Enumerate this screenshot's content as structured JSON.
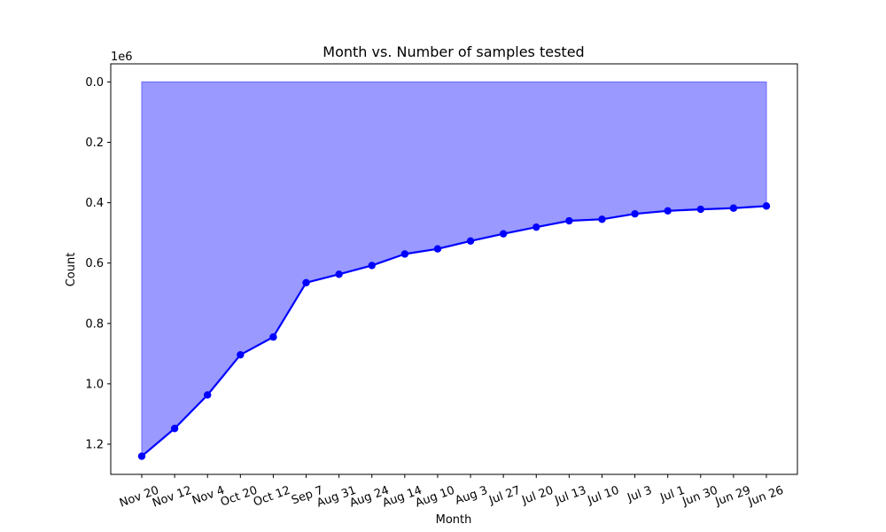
{
  "chart_data": {
    "type": "area",
    "title": "Month vs. Number of samples tested",
    "xlabel": "Month",
    "ylabel": "Count",
    "y_multiplier_label": "1e6",
    "y_axis_inverted": true,
    "ylim": [
      1.3,
      -0.06
    ],
    "y_ticks": [
      0.0,
      0.2,
      0.4,
      0.6,
      0.8,
      1.0,
      1.2
    ],
    "y_tick_labels": [
      "0.0",
      "0.2",
      "0.4",
      "0.6",
      "0.8",
      "1.0",
      "1.2"
    ],
    "grid": false,
    "categories": [
      "Nov 20",
      "Nov 12",
      "Nov 4",
      "Oct 20",
      "Oct 12",
      "Sep 7",
      "Aug 31",
      "Aug 24",
      "Aug 14",
      "Aug 10",
      "Aug 3",
      "Jul 27",
      "Jul 20",
      "Jul 13",
      "Jul 10",
      "Jul 3",
      "Jul 1",
      "Jun 30",
      "Jun 29",
      "Jun 26"
    ],
    "series": [
      {
        "values": [
          1.24,
          1.148,
          1.037,
          0.904,
          0.845,
          0.665,
          0.637,
          0.608,
          0.57,
          0.553,
          0.527,
          0.503,
          0.481,
          0.46,
          0.455,
          0.437,
          0.427,
          0.422,
          0.418,
          0.411
        ],
        "line_color": "#0000ff",
        "fill_color": "#9999ff"
      }
    ]
  }
}
